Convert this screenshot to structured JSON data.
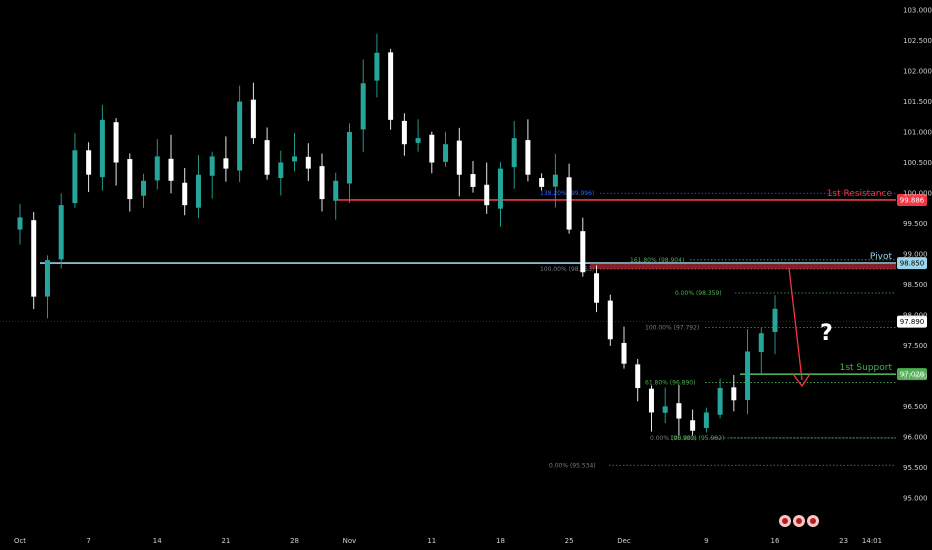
{
  "chart_data": {
    "type": "candlestick",
    "ylim": [
      94.8,
      103.1
    ],
    "y_ticks": [
      {
        "v": 103.0,
        "label": "103.000"
      },
      {
        "v": 102.5,
        "label": "102.500"
      },
      {
        "v": 102.0,
        "label": "102.000"
      },
      {
        "v": 101.5,
        "label": "101.500"
      },
      {
        "v": 101.0,
        "label": "101.000"
      },
      {
        "v": 100.5,
        "label": "100.500"
      },
      {
        "v": 100.0,
        "label": "100.000"
      },
      {
        "v": 99.5,
        "label": "99.500"
      },
      {
        "v": 99.0,
        "label": "99.000"
      },
      {
        "v": 98.5,
        "label": "98.500"
      },
      {
        "v": 98.0,
        "label": "98.000"
      },
      {
        "v": 97.5,
        "label": "97.500"
      },
      {
        "v": 97.0,
        "label": "97.000"
      },
      {
        "v": 96.5,
        "label": "96.500"
      },
      {
        "v": 96.0,
        "label": "96.000"
      },
      {
        "v": 95.5,
        "label": "95.500"
      },
      {
        "v": 95.0,
        "label": "95.000"
      }
    ],
    "x_ticks": [
      {
        "i": 0,
        "label": "Oct"
      },
      {
        "i": 5,
        "label": "7"
      },
      {
        "i": 10,
        "label": "14"
      },
      {
        "i": 15,
        "label": "21"
      },
      {
        "i": 20,
        "label": "28"
      },
      {
        "i": 24,
        "label": "Nov"
      },
      {
        "i": 30,
        "label": "11"
      },
      {
        "i": 35,
        "label": "18"
      },
      {
        "i": 40,
        "label": "25"
      },
      {
        "i": 44,
        "label": "Dec"
      },
      {
        "i": 50,
        "label": "9"
      },
      {
        "i": 55,
        "label": "16"
      },
      {
        "i": 60,
        "label": "23"
      },
      {
        "i": 64,
        "label": "14:01"
      }
    ],
    "closes": [
      99.6,
      98.3,
      98.9,
      99.8,
      100.7,
      100.3,
      101.2,
      100.5,
      99.9,
      100.2,
      100.6,
      100.2,
      99.8,
      100.3,
      100.6,
      100.4,
      101.5,
      100.9,
      100.3,
      100.5,
      100.6,
      100.4,
      99.9,
      100.2,
      101.0,
      101.8,
      102.3,
      101.2,
      100.8,
      100.9,
      100.5,
      100.8,
      100.3,
      100.1,
      99.8,
      100.4,
      100.9,
      100.3,
      100.1,
      100.3,
      99.4,
      98.7,
      98.2,
      97.6,
      97.2,
      96.8,
      96.4,
      96.5,
      96.3,
      96.1,
      96.4,
      96.8,
      96.6,
      97.4,
      97.7,
      98.1
    ],
    "closes_note": "",
    "levels": [
      {
        "name": "1st Resistance",
        "value": 99.886,
        "label": "99.886",
        "color": "#f23645"
      },
      {
        "name": "Pivot",
        "value": 98.85,
        "label": "98.850",
        "color": "#9ad4ea"
      },
      {
        "name": "1st Support",
        "value": 97.028,
        "label": "97.028",
        "color": "#4caf50"
      }
    ],
    "current_price": {
      "value": 97.89,
      "label": "97.890"
    },
    "fib_labels": [
      {
        "text": "138.20% (99.996)",
        "value": 99.996,
        "color": "#2962ff"
      },
      {
        "text": "161.80% (98.904)",
        "value": 98.904,
        "color": "#4caf50"
      },
      {
        "text": "100.00% (98.753)",
        "value": 98.753,
        "color": "#787b86"
      },
      {
        "text": "0.00% (98.359)",
        "value": 98.359,
        "color": "#4caf50"
      },
      {
        "text": "100.00% (97.792)",
        "value": 97.792,
        "color": "#787b86"
      },
      {
        "text": "61.80% (96.890)",
        "value": 96.89,
        "color": "#4caf50"
      },
      {
        "text": "0.00% (95.982)",
        "value": 95.982,
        "color": "#787b86"
      },
      {
        "text": "100.00% (95.982)",
        "value": 95.982,
        "color": "#4caf50"
      },
      {
        "text": "0.00% (95.534)",
        "value": 95.534,
        "color": "#787b86"
      }
    ],
    "annotation": "?",
    "colors": {
      "up": "#26a69a",
      "down": "#ffffff",
      "background": "#000000"
    }
  }
}
